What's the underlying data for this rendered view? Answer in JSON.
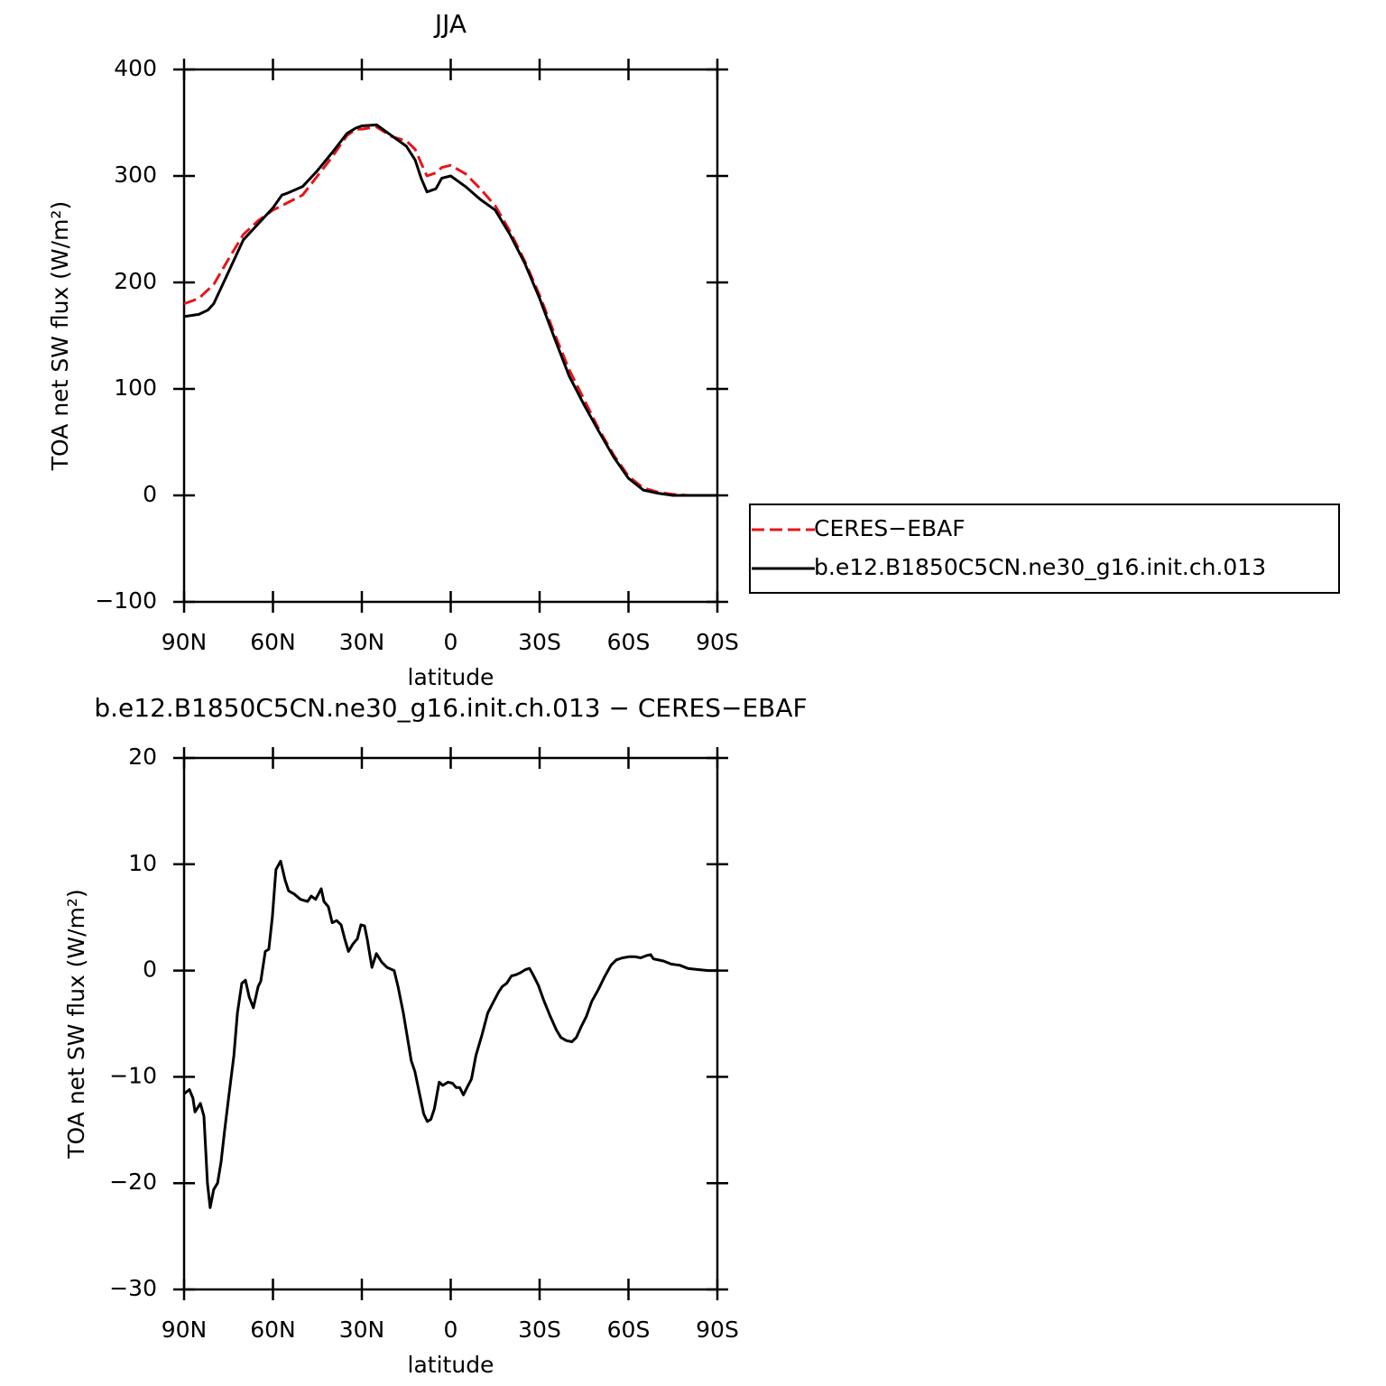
{
  "chart_data": [
    {
      "type": "line",
      "title": "JJA",
      "xlabel": "latitude",
      "ylabel": "TOA net SW flux (W/m²)",
      "x": [
        90,
        85,
        82,
        80,
        75,
        70,
        65,
        60,
        57,
        55,
        50,
        45,
        40,
        35,
        32,
        30,
        25,
        20,
        15,
        12,
        10,
        8,
        5,
        3,
        0,
        -5,
        -10,
        -15,
        -20,
        -25,
        -30,
        -35,
        -40,
        -45,
        -50,
        -55,
        -60,
        -65,
        -70,
        -75,
        -80,
        -85,
        -90
      ],
      "xlim": [
        90,
        -90
      ],
      "xticks": [
        {
          "value": 90,
          "label": "90N"
        },
        {
          "value": 60,
          "label": "60N"
        },
        {
          "value": 30,
          "label": "30N"
        },
        0,
        {
          "value": -30,
          "label": "30S"
        },
        {
          "value": -60,
          "label": "60S"
        },
        {
          "value": -90,
          "label": "90S"
        }
      ],
      "ylim": [
        -100,
        400
      ],
      "yticks": [
        {
          "value": -100,
          "label": "−100"
        },
        0,
        100,
        200,
        300,
        400
      ],
      "legend": "right",
      "series": [
        {
          "name": "CERES−EBAF",
          "color": "#e8141a",
          "dash": true,
          "values": [
            180,
            185,
            193,
            198,
            222,
            245,
            258,
            268,
            272,
            275,
            282,
            300,
            318,
            338,
            344,
            344,
            346,
            337,
            333,
            325,
            312,
            300,
            303,
            308,
            310,
            302,
            288,
            272,
            248,
            220,
            188,
            152,
            118,
            90,
            62,
            38,
            18,
            7,
            3,
            1,
            0,
            0,
            0
          ]
        },
        {
          "name": "b.e12.B1850C5CN.ne30_g16.init.ch.013",
          "color": "#000000",
          "dash": false,
          "values": [
            168,
            170,
            174,
            180,
            210,
            240,
            255,
            270,
            282,
            284,
            290,
            305,
            322,
            340,
            345,
            347,
            348,
            338,
            328,
            315,
            298,
            285,
            288,
            298,
            300,
            290,
            278,
            268,
            245,
            218,
            185,
            148,
            112,
            85,
            60,
            36,
            16,
            5,
            2,
            0,
            0,
            0,
            0
          ]
        }
      ]
    },
    {
      "type": "line",
      "title": "b.e12.B1850C5CN.ne30_g16.init.ch.013 − CERES−EBAF",
      "xlabel": "latitude",
      "ylabel": "TOA net SW flux (W/m²)",
      "x": [
        90,
        88.2,
        87,
        86.3,
        84.5,
        83.3,
        82.1,
        81.2,
        80,
        78.7,
        77.5,
        76.3,
        75,
        73.2,
        72,
        70.5,
        69.3,
        68,
        66.6,
        65,
        64.1,
        62.6,
        61.4,
        60.2,
        59,
        57.4,
        55.9,
        54.7,
        52.8,
        50.7,
        48.3,
        47.1,
        45.6,
        43.7,
        42.8,
        41.3,
        40,
        38.5,
        37,
        35.8,
        34.5,
        33,
        31.5,
        30.3,
        29.1,
        28.2,
        26.6,
        25.1,
        23.3,
        21.5,
        19.1,
        17.8,
        16,
        14.5,
        13.3,
        12.1,
        10.6,
        9.1,
        7.9,
        6.7,
        5.5,
        3.9,
        2.7,
        0.9,
        -0.6,
        -1.8,
        -3,
        -4.3,
        -5.5,
        -7,
        -8.5,
        -10.6,
        -12.5,
        -14.3,
        -16.2,
        -17.4,
        -18.9,
        -20.5,
        -22,
        -23.5,
        -25.3,
        -26.6,
        -27.8,
        -29.6,
        -31.4,
        -33.6,
        -35.7,
        -37.2,
        -39.1,
        -40.9,
        -42.4,
        -44,
        -45.8,
        -47.6,
        -49.8,
        -51.9,
        -54.1,
        -55.9,
        -58,
        -60.2,
        -62.3,
        -64.1,
        -66,
        -67.5,
        -68.4,
        -71.8,
        -74.5,
        -77.3,
        -80,
        -83.1,
        -87,
        -90
      ],
      "xlim": [
        90,
        -90
      ],
      "xticks": [
        {
          "value": 90,
          "label": "90N"
        },
        {
          "value": 60,
          "label": "60N"
        },
        {
          "value": 30,
          "label": "30N"
        },
        0,
        {
          "value": -30,
          "label": "30S"
        },
        {
          "value": -60,
          "label": "60S"
        },
        {
          "value": -90,
          "label": "90S"
        }
      ],
      "ylim": [
        -30,
        20
      ],
      "yticks": [
        {
          "value": -30,
          "label": "−30"
        },
        {
          "value": -20,
          "label": "−20"
        },
        {
          "value": -10,
          "label": "−10"
        },
        0,
        10,
        20
      ],
      "series": [
        {
          "color": "#000000",
          "dash": false,
          "values": [
            -11.6,
            -11.2,
            -12,
            -13.3,
            -12.5,
            -13.7,
            -20,
            -22.3,
            -20.6,
            -20,
            -18,
            -15,
            -12,
            -8,
            -4,
            -1.2,
            -0.9,
            -2.5,
            -3.5,
            -1.5,
            -1,
            1.8,
            2,
            5,
            9.5,
            10.3,
            8.5,
            7.5,
            7.2,
            6.7,
            6.5,
            7,
            6.7,
            7.7,
            6.5,
            6,
            4.5,
            4.7,
            4.3,
            3,
            1.8,
            2.5,
            3,
            4.3,
            4.2,
            3,
            0.3,
            1.6,
            0.8,
            0.3,
            0,
            -1.5,
            -4,
            -6.5,
            -8.5,
            -9.5,
            -11.5,
            -13.5,
            -14.2,
            -14,
            -13,
            -10.5,
            -10.8,
            -10.5,
            -10.6,
            -11,
            -11,
            -11.7,
            -11,
            -10.2,
            -8,
            -6,
            -4,
            -3,
            -2,
            -1.5,
            -1.2,
            -0.5,
            -0.4,
            -0.2,
            0.1,
            0.2,
            -0.4,
            -1.4,
            -2.8,
            -4.3,
            -5.6,
            -6.3,
            -6.6,
            -6.7,
            -6.3,
            -5.3,
            -4.3,
            -2.9,
            -1.8,
            -0.6,
            0.5,
            1,
            1.2,
            1.3,
            1.3,
            1.2,
            1.4,
            1.5,
            1.1,
            0.9,
            0.6,
            0.5,
            0.2,
            0.1,
            0,
            0
          ]
        }
      ]
    }
  ]
}
